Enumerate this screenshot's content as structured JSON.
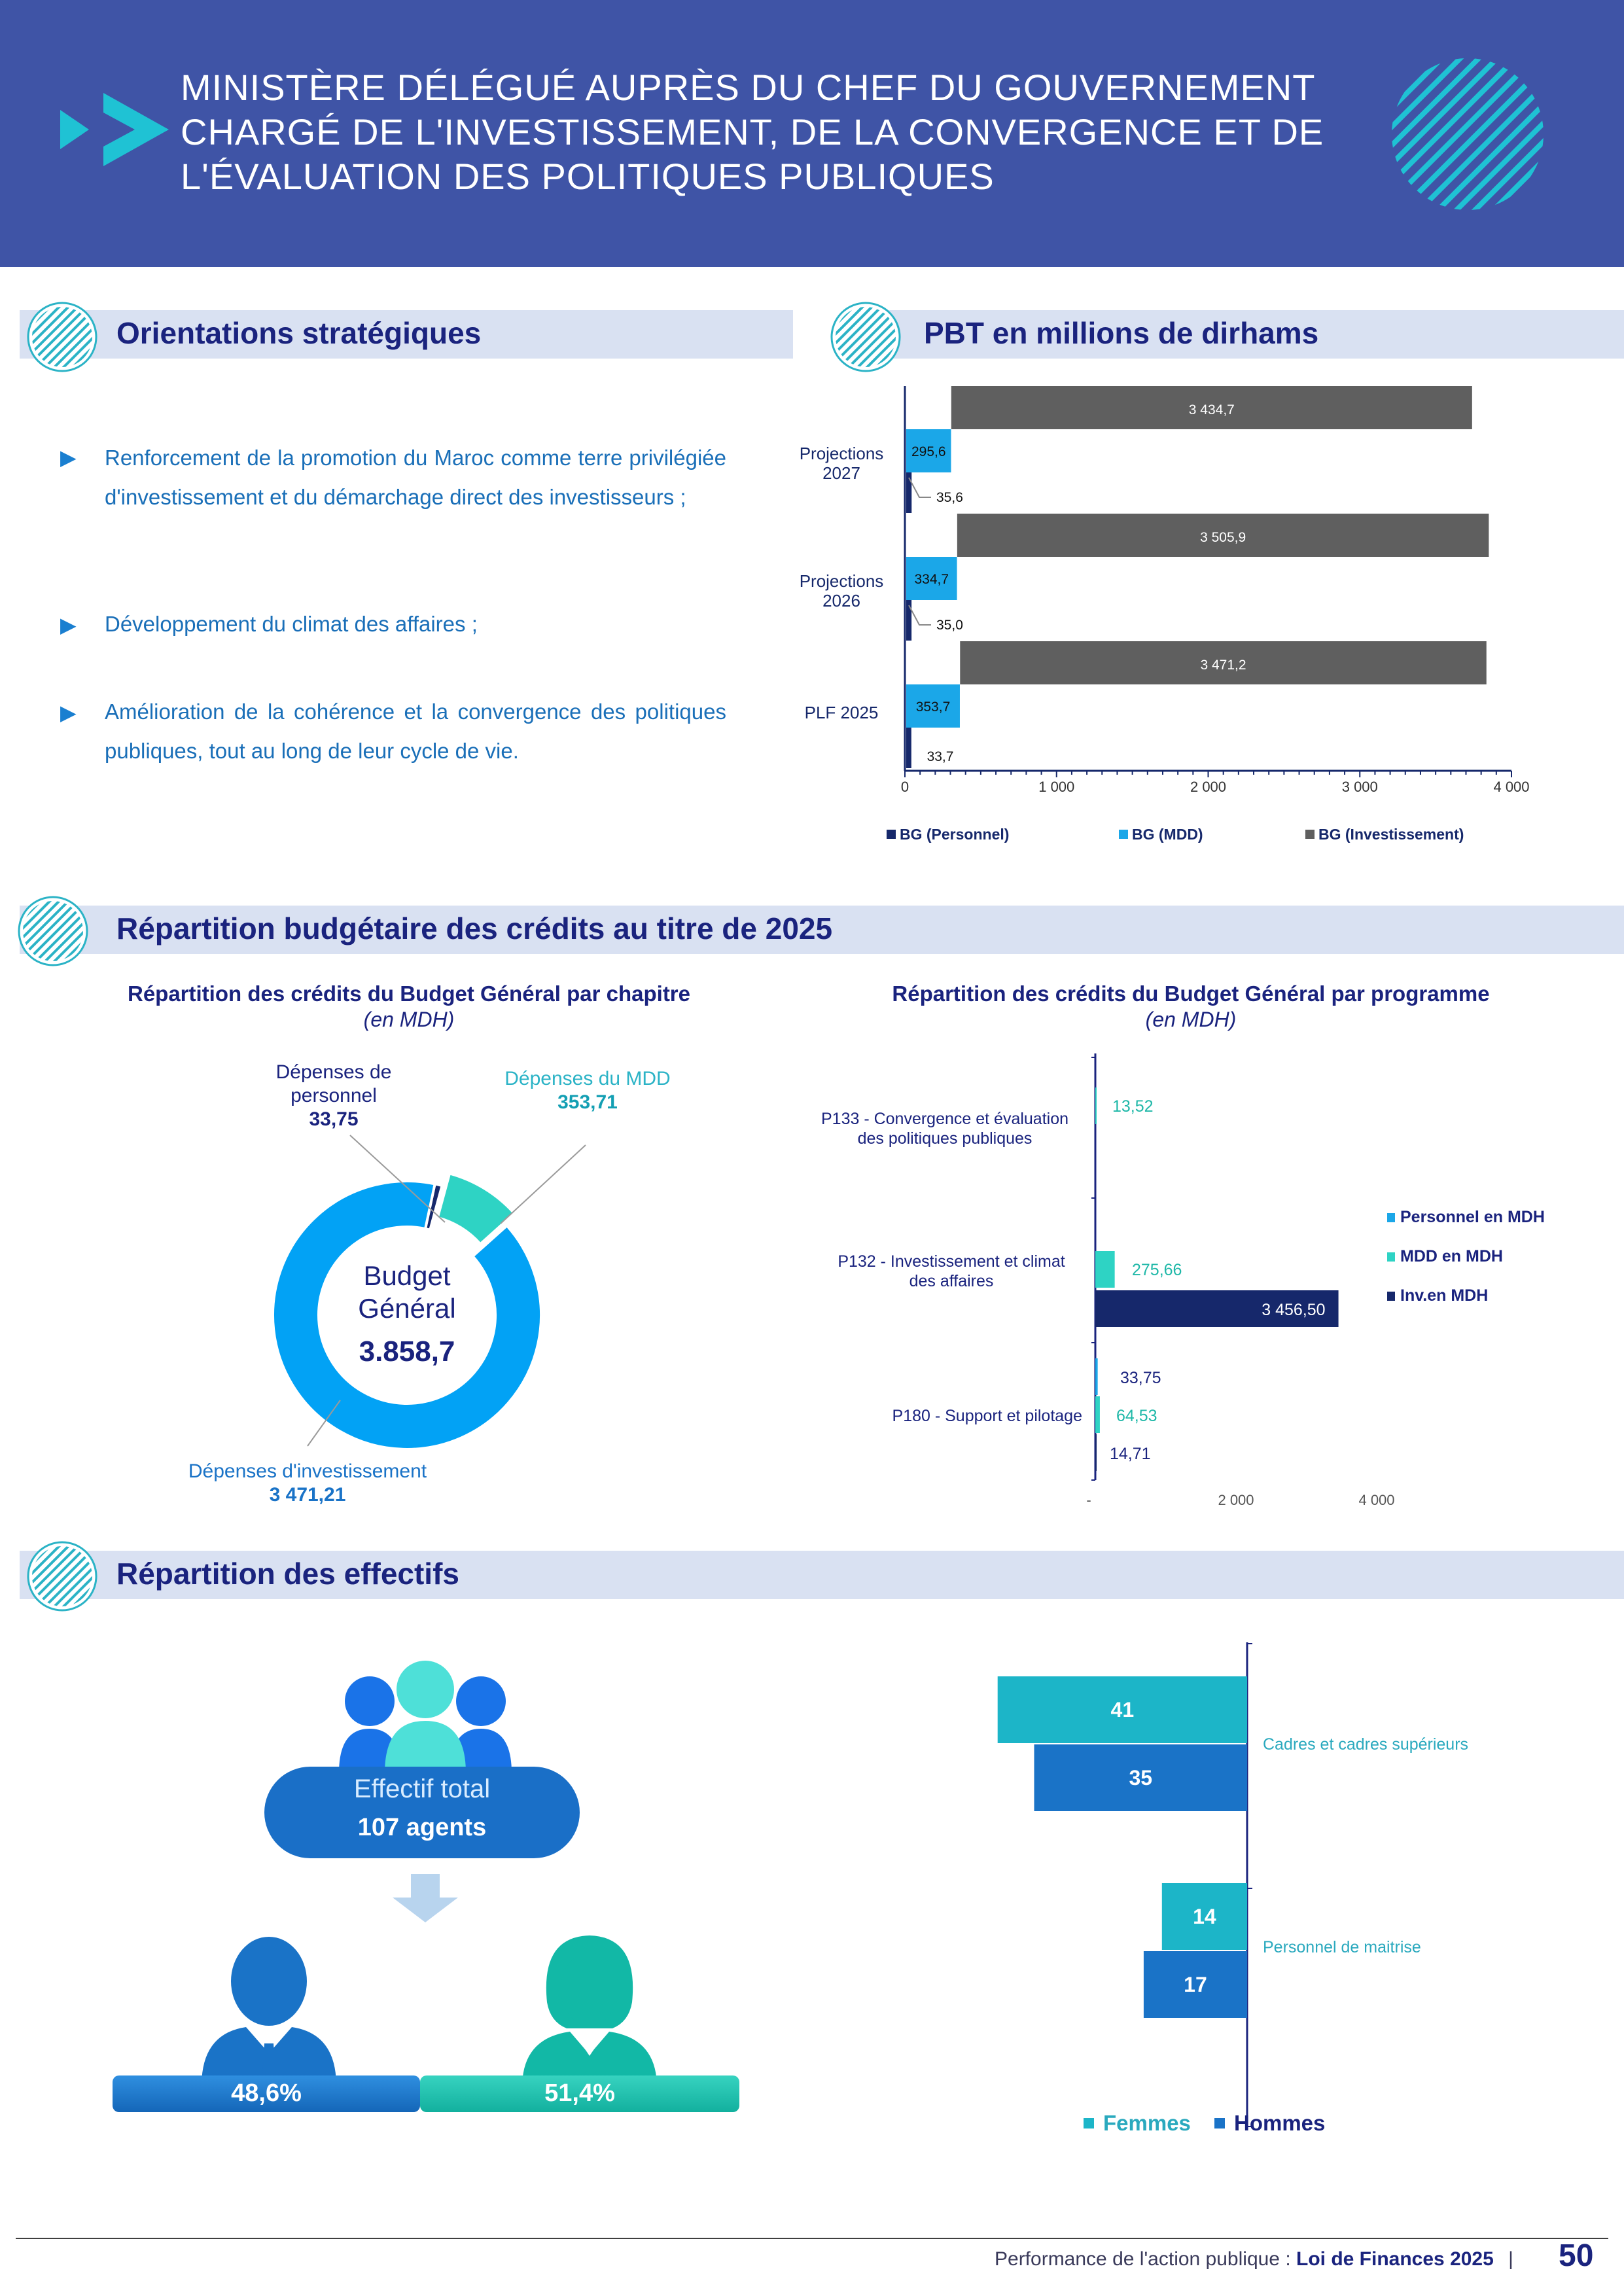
{
  "header": {
    "title": "MINISTÈRE DÉLÉGUÉ AUPRÈS DU CHEF DU GOUVERNEMENT\nCHARGÉ DE L'INVESTISSEMENT, DE LA CONVERGENCE ET DE\nL'ÉVALUATION DES POLITIQUES PUBLIQUES"
  },
  "sections": {
    "orientations": "Orientations stratégiques",
    "pbt": "PBT en millions de dirhams",
    "repartition_budget": "Répartition budgétaire des crédits au titre de 2025",
    "repartition_effectifs": "Répartition des effectifs"
  },
  "orientations": [
    "Renforcement de la promotion du Maroc comme terre privilégiée d'investissement et du démarchage direct des investisseurs ;",
    "Développement du climat des affaires ;",
    "Amélioration de la cohérence et la convergence des politiques publiques, tout au long de leur cycle de vie."
  ],
  "colors": {
    "header_bg": "#3f54a6",
    "personnel": "#16286b",
    "mdd": "#1ba7e8",
    "investissement": "#5f5f5f",
    "teal": "#2ed3c4",
    "women": "#1cb5c8",
    "men": "#1a73c7"
  },
  "chart_data": [
    {
      "type": "bar",
      "orientation": "horizontal",
      "categories": [
        "Projections 2027",
        "Projections 2026",
        "PLF 2025"
      ],
      "series": [
        {
          "name": "BG (Personnel)",
          "values": [
            35.6,
            35.0,
            33.7
          ]
        },
        {
          "name": "BG (MDD)",
          "values": [
            295.6,
            334.7,
            353.7
          ]
        },
        {
          "name": "BG (Investissement)",
          "values": [
            3434.7,
            3505.9,
            3471.2
          ]
        }
      ],
      "data_labels": {
        "BG (Personnel)": [
          "35,6",
          "35,0",
          "33,7"
        ],
        "BG (MDD)": [
          "295,6",
          "334,7",
          "353,7"
        ],
        "BG (Investissement)": [
          "3 434,7",
          "3 505,9",
          "3 471,2"
        ]
      },
      "xlim": [
        0,
        4000
      ],
      "xticks": [
        "0",
        "1 000",
        "2 000",
        "3 000",
        "4 000"
      ],
      "legend": "bottom"
    },
    {
      "type": "pie",
      "title": "Répartition des crédits du Budget Général par chapitre",
      "unit": "en MDH",
      "center_label": "Budget Général",
      "center_value": "3.858,7",
      "slices": [
        {
          "name": "Dépenses de personnel",
          "value": 33.75,
          "label": "33,75"
        },
        {
          "name": "Dépenses du MDD",
          "value": 353.71,
          "label": "353,71"
        },
        {
          "name": "Dépenses d'investissement",
          "value": 3471.21,
          "label": "3 471,21"
        }
      ]
    },
    {
      "type": "bar",
      "orientation": "horizontal",
      "title": "Répartition des crédits du Budget Général par programme",
      "unit": "en MDH",
      "categories": [
        "P133 - Convergence et évaluation des politiques publiques",
        "P132 - Investissement et climat des affaires",
        "P180 - Support et pilotage"
      ],
      "series": [
        {
          "name": "Personnel en MDH",
          "values": [
            null,
            null,
            33.75
          ],
          "labels": [
            "",
            "",
            "33,75"
          ]
        },
        {
          "name": "MDD en MDH",
          "values": [
            13.52,
            275.66,
            64.53
          ],
          "labels": [
            "13,52",
            "275,66",
            "64,53"
          ]
        },
        {
          "name": "Inv.en MDH",
          "values": [
            null,
            3456.5,
            14.71
          ],
          "labels": [
            "",
            "3 456,50",
            "14,71"
          ]
        }
      ],
      "xlim": [
        0,
        4000
      ],
      "xticks": [
        "-",
        "2 000",
        "4 000"
      ],
      "legend": "right"
    },
    {
      "type": "bar",
      "orientation": "horizontal",
      "categories": [
        "Cadres et cadres supérieurs",
        "Personnel de maitrise"
      ],
      "series": [
        {
          "name": "Femmes",
          "values": [
            41,
            14
          ]
        },
        {
          "name": "Hommes",
          "values": [
            35,
            17
          ]
        }
      ],
      "legend": "bottom"
    }
  ],
  "effectifs": {
    "total_label": "Effectif total",
    "total_value": "107 agents",
    "men_pct": "48,6%",
    "women_pct": "51,4%",
    "men_value": 48.6,
    "women_value": 51.4
  },
  "footer": {
    "text_prefix": "Performance de l'action publique : ",
    "text_bold": "Loi de Finances 2025",
    "separator": "|",
    "page": "50"
  }
}
